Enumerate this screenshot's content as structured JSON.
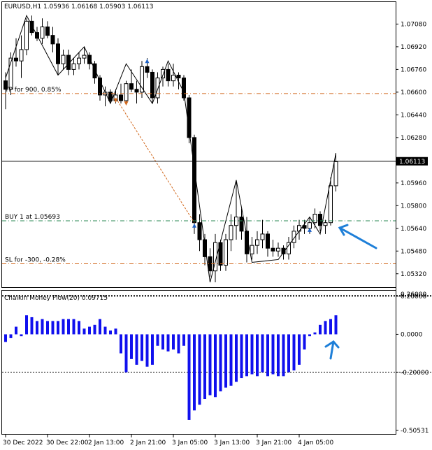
{
  "chart_data": [
    {
      "type": "candlestick",
      "title": "EURUSD,H1  1.05936 1.06168 1.05903 1.06113",
      "y_ticks": [
        "1.07080",
        "1.06920",
        "1.06760",
        "1.06600",
        "1.06440",
        "1.06280",
        "1.06120",
        "1.05960",
        "1.05800",
        "1.05640",
        "1.05480",
        "1.05320"
      ],
      "y_tick_values": [
        1.0708,
        1.0692,
        1.0676,
        1.066,
        1.0644,
        1.0628,
        1.0612,
        1.0596,
        1.058,
        1.0564,
        1.0548,
        1.0532
      ],
      "ylim": [
        1.0524,
        1.0722
      ],
      "current_price_label": "1.06113",
      "current_price": 1.06113,
      "levels": [
        {
          "label": "TP for 900, 0.85%",
          "value": 1.0659,
          "color": "#d2691e"
        },
        {
          "label": "BUY 1 at 1.05693",
          "value": 1.05693,
          "color": "#2e8b57"
        },
        {
          "label": "SL for -300, -0.28%",
          "value": 1.0539,
          "color": "#d2691e"
        }
      ],
      "candles": [
        [
          1.0668,
          1.0674,
          1.0648,
          1.0662
        ],
        [
          1.0662,
          1.0688,
          1.0658,
          1.0684
        ],
        [
          1.0684,
          1.0698,
          1.0678,
          1.0682
        ],
        [
          1.0682,
          1.07,
          1.067,
          1.069
        ],
        [
          1.069,
          1.0712,
          1.0686,
          1.071
        ],
        [
          1.071,
          1.0714,
          1.07,
          1.0702
        ],
        [
          1.0702,
          1.0706,
          1.0696,
          1.0698
        ],
        [
          1.0698,
          1.0712,
          1.0694,
          1.0706
        ],
        [
          1.0706,
          1.071,
          1.0698,
          1.07
        ],
        [
          1.07,
          1.0706,
          1.0688,
          1.0694
        ],
        [
          1.0694,
          1.0698,
          1.0672,
          1.068
        ],
        [
          1.068,
          1.069,
          1.0676,
          1.0686
        ],
        [
          1.0686,
          1.069,
          1.0672,
          1.0676
        ],
        [
          1.0676,
          1.0684,
          1.0672,
          1.068
        ],
        [
          1.068,
          1.0688,
          1.0676,
          1.0684
        ],
        [
          1.0684,
          1.0692,
          1.068,
          1.0686
        ],
        [
          1.0686,
          1.0688,
          1.0676,
          1.068
        ],
        [
          1.068,
          1.0682,
          1.0666,
          1.067
        ],
        [
          1.067,
          1.0672,
          1.0654,
          1.0658
        ],
        [
          1.0658,
          1.0664,
          1.065,
          1.066
        ],
        [
          1.066,
          1.0662,
          1.0652,
          1.0654
        ],
        [
          1.0654,
          1.0662,
          1.0652,
          1.0658
        ],
        [
          1.0658,
          1.0666,
          1.0652,
          1.0654
        ],
        [
          1.0654,
          1.0668,
          1.0652,
          1.0666
        ],
        [
          1.0666,
          1.0676,
          1.066,
          1.0662
        ],
        [
          1.0662,
          1.0668,
          1.0652,
          1.066
        ],
        [
          1.066,
          1.0682,
          1.0656,
          1.0678
        ],
        [
          1.0678,
          1.0684,
          1.067,
          1.0674
        ],
        [
          1.0674,
          1.0676,
          1.0652,
          1.0656
        ],
        [
          1.0656,
          1.0674,
          1.0652,
          1.067
        ],
        [
          1.067,
          1.0678,
          1.0664,
          1.0676
        ],
        [
          1.0676,
          1.068,
          1.0664,
          1.0668
        ],
        [
          1.0668,
          1.068,
          1.0664,
          1.0672
        ],
        [
          1.0672,
          1.0674,
          1.0662,
          1.067
        ],
        [
          1.067,
          1.0672,
          1.0654,
          1.0656
        ],
        [
          1.0656,
          1.0658,
          1.0624,
          1.0628
        ],
        [
          1.0628,
          1.063,
          1.056,
          1.0568
        ],
        [
          1.0568,
          1.0574,
          1.0548,
          1.0556
        ],
        [
          1.0556,
          1.056,
          1.0538,
          1.0544
        ],
        [
          1.0544,
          1.055,
          1.053,
          1.0534
        ],
        [
          1.0534,
          1.056,
          1.0526,
          1.0554
        ],
        [
          1.0554,
          1.0556,
          1.0534,
          1.0538
        ],
        [
          1.0538,
          1.056,
          1.0534,
          1.0556
        ],
        [
          1.0556,
          1.0574,
          1.0548,
          1.0566
        ],
        [
          1.0566,
          1.0598,
          1.0556,
          1.0572
        ],
        [
          1.0572,
          1.0578,
          1.0556,
          1.0562
        ],
        [
          1.0562,
          1.0572,
          1.054,
          1.0546
        ],
        [
          1.0546,
          1.0558,
          1.0542,
          1.0552
        ],
        [
          1.0552,
          1.0562,
          1.0546,
          1.0556
        ],
        [
          1.0556,
          1.057,
          1.055,
          1.056
        ],
        [
          1.056,
          1.0562,
          1.0544,
          1.055
        ],
        [
          1.055,
          1.0556,
          1.0544,
          1.0548
        ],
        [
          1.0548,
          1.0554,
          1.0544,
          1.055
        ],
        [
          1.055,
          1.0552,
          1.0542,
          1.0546
        ],
        [
          1.0546,
          1.0558,
          1.0542,
          1.0554
        ],
        [
          1.0554,
          1.0566,
          1.055,
          1.0562
        ],
        [
          1.0562,
          1.057,
          1.0556,
          1.0566
        ],
        [
          1.0566,
          1.057,
          1.056,
          1.0564
        ],
        [
          1.0564,
          1.0572,
          1.056,
          1.0568
        ],
        [
          1.0568,
          1.0578,
          1.0564,
          1.0574
        ],
        [
          1.0574,
          1.0576,
          1.0562,
          1.0566
        ],
        [
          1.0566,
          1.057,
          1.056,
          1.0568
        ],
        [
          1.0568,
          1.06,
          1.0566,
          1.0594
        ],
        [
          1.0594,
          1.0617,
          1.059,
          1.0611
        ]
      ],
      "zigzag_points": [
        [
          0,
          1.067
        ],
        [
          4,
          1.0714
        ],
        [
          10,
          1.0672
        ],
        [
          15,
          1.0692
        ],
        [
          20,
          1.0652
        ],
        [
          23,
          1.068
        ],
        [
          28,
          1.0652
        ],
        [
          31,
          1.0682
        ],
        [
          34,
          1.066
        ],
        [
          39,
          1.0526
        ],
        [
          44,
          1.0598
        ],
        [
          47,
          1.054
        ],
        [
          52,
          1.0542
        ],
        [
          58,
          1.0572
        ],
        [
          60,
          1.056
        ],
        [
          63,
          1.0617
        ]
      ],
      "trade_line": {
        "from": [
          21,
          1.0656
        ],
        "to": [
          36,
          1.0568
        ]
      },
      "markers": [
        {
          "type": "sell-arrow",
          "index": 21,
          "value": 1.0654,
          "color": "#d2691e"
        },
        {
          "type": "sell-arrow",
          "index": 23,
          "value": 1.0652,
          "color": "#d2691e"
        },
        {
          "type": "buy-arrow",
          "index": 27,
          "value": 1.0682,
          "color": "#1e63c8"
        },
        {
          "type": "buy-arrow",
          "index": 36,
          "value": 1.0566,
          "color": "#1e63c8"
        },
        {
          "type": "buy-arrow",
          "index": 58,
          "value": 1.0563,
          "color": "#1e63c8"
        }
      ],
      "x_labels": [
        "30 Dec 2022",
        "30 Dec 22:00",
        "2 Jan 13:00",
        "2 Jan 21:00",
        "3 Jan 05:00",
        "3 Jan 13:00",
        "3 Jan 21:00",
        "4 Jan 05:00"
      ],
      "x_label_indices": [
        0,
        8,
        16,
        24,
        32,
        40,
        48,
        56
      ]
    },
    {
      "type": "bar",
      "title": "Chaikin Money Flow(20) 0.09715",
      "y_ticks": [
        "0.20000",
        "0.0000",
        "-0.20000",
        "-0.50531"
      ],
      "y_tick_values": [
        0.2,
        0.0,
        -0.2,
        -0.50531
      ],
      "ylim": [
        -0.5053,
        0.2
      ],
      "top_label": "0.26000",
      "values": [
        -0.04,
        -0.02,
        0.04,
        -0.01,
        0.1,
        0.09,
        0.07,
        0.08,
        0.07,
        0.07,
        0.07,
        0.08,
        0.08,
        0.08,
        0.07,
        0.03,
        0.04,
        0.05,
        0.08,
        0.04,
        0.02,
        0.03,
        -0.1,
        -0.2,
        -0.13,
        -0.16,
        -0.14,
        -0.17,
        -0.16,
        -0.06,
        -0.08,
        -0.09,
        -0.08,
        -0.1,
        -0.06,
        -0.45,
        -0.4,
        -0.37,
        -0.34,
        -0.32,
        -0.33,
        -0.3,
        -0.28,
        -0.27,
        -0.25,
        -0.23,
        -0.22,
        -0.21,
        -0.22,
        -0.2,
        -0.22,
        -0.21,
        -0.22,
        -0.22,
        -0.2,
        -0.19,
        -0.16,
        -0.08,
        -0.01,
        0.01,
        0.05,
        0.07,
        0.08,
        0.1
      ],
      "color": "#1010ee"
    }
  ],
  "annotations": [
    {
      "name": "price-arrow",
      "color": "#1e7fd8"
    },
    {
      "name": "cmf-arrow",
      "color": "#1e7fd8"
    }
  ]
}
